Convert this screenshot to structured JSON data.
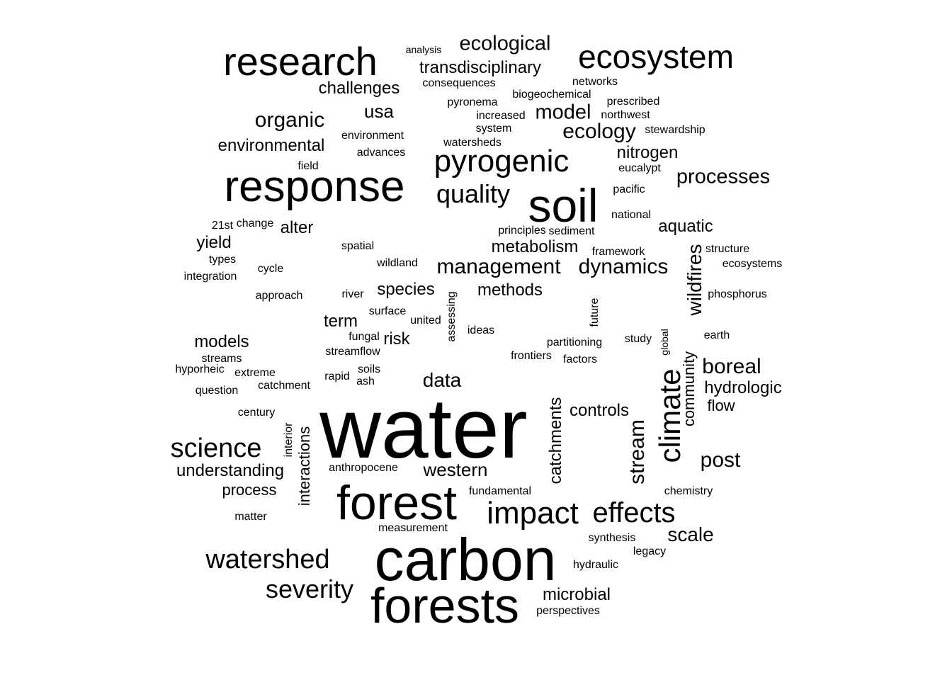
{
  "ink_color": "#000000",
  "background_color": "#ffffff",
  "words": [
    "water",
    "carbon",
    "forests",
    "forest",
    "response",
    "soil",
    "research",
    "ecosystem",
    "pyrogenic",
    "impact",
    "effects",
    "climate",
    "watershed",
    "severity",
    "science",
    "quality",
    "management",
    "dynamics",
    "ecology",
    "processes",
    "model",
    "ecological",
    "organic",
    "environmental",
    "usa",
    "transdisciplinary",
    "challenges",
    "boreal",
    "hydrologic",
    "data",
    "post",
    "scale",
    "wildfires",
    "stream",
    "metabolism",
    "methods",
    "nitrogen",
    "aquatic",
    "species",
    "western",
    "understanding",
    "catchments",
    "interactions",
    "controls",
    "models",
    "alter",
    "yield",
    "risk",
    "term",
    "microbial",
    "community",
    "flow",
    "process",
    "integration",
    "spatial",
    "phosphorus",
    "structure",
    "ecosystems",
    "northwest",
    "prescribed",
    "networks",
    "consequences",
    "analysis",
    "biogeochemical",
    "pyronema",
    "increased",
    "system",
    "watersheds",
    "environment",
    "advances",
    "field",
    "stewardship",
    "eucalypt",
    "pacific",
    "national",
    "principles",
    "sediment",
    "framework",
    "change",
    "21st",
    "types",
    "cycle",
    "approach",
    "river",
    "wildland",
    "surface",
    "united",
    "fungal",
    "streamflow",
    "soils",
    "ash",
    "rapid",
    "catchment",
    "question",
    "century",
    "extreme",
    "hyporheic",
    "streams",
    "ideas",
    "partitioning",
    "factors",
    "frontiers",
    "study",
    "earth",
    "fundamental",
    "anthropocene",
    "measurement",
    "matter",
    "chemistry",
    "legacy",
    "synthesis",
    "hydraulic",
    "perspectives",
    "assessing",
    "global",
    "future",
    "interior"
  ]
}
